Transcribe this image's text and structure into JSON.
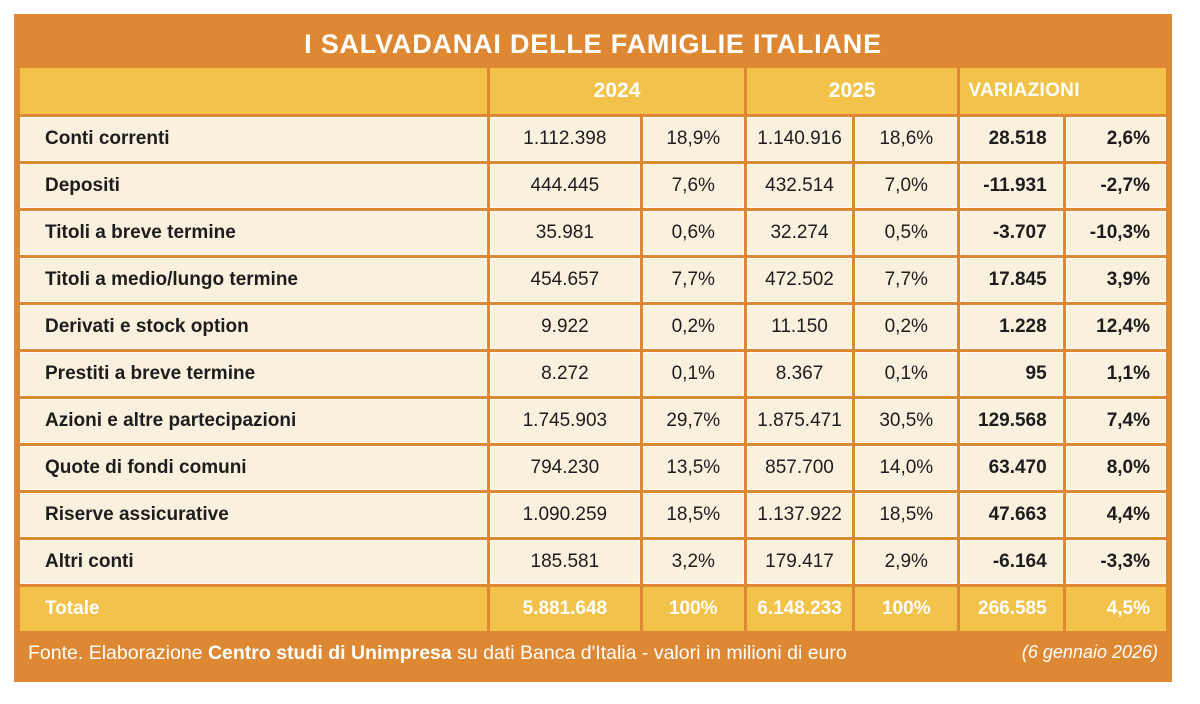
{
  "colors": {
    "frame_orange": "#DE8833",
    "header_gold": "#F3C24A",
    "cell_cream": "#FAF0DE",
    "text_dark": "#1D1D1D",
    "text_white": "#FFFFFF"
  },
  "chart_data": {
    "type": "table",
    "title": "I SALVADANAI DELLE FAMIGLIE ITALIANE",
    "headers": {
      "y2024": "2024",
      "y2025": "2025",
      "variazioni": "VARIAZIONI"
    },
    "rows": [
      {
        "label": "Conti correnti",
        "v2024": "1.112.398",
        "p2024": "18,9%",
        "v2025": "1.140.916",
        "p2025": "18,6%",
        "var": "28.518",
        "varp": "2,6%"
      },
      {
        "label": "Depositi",
        "v2024": "444.445",
        "p2024": "7,6%",
        "v2025": "432.514",
        "p2025": "7,0%",
        "var": "-11.931",
        "varp": "-2,7%"
      },
      {
        "label": "Titoli a breve termine",
        "v2024": "35.981",
        "p2024": "0,6%",
        "v2025": "32.274",
        "p2025": "0,5%",
        "var": "-3.707",
        "varp": "-10,3%"
      },
      {
        "label": "Titoli a medio/lungo termine",
        "v2024": "454.657",
        "p2024": "7,7%",
        "v2025": "472.502",
        "p2025": "7,7%",
        "var": "17.845",
        "varp": "3,9%"
      },
      {
        "label": "Derivati e stock option",
        "v2024": "9.922",
        "p2024": "0,2%",
        "v2025": "11.150",
        "p2025": "0,2%",
        "var": "1.228",
        "varp": "12,4%"
      },
      {
        "label": "Prestiti a breve termine",
        "v2024": "8.272",
        "p2024": "0,1%",
        "v2025": "8.367",
        "p2025": "0,1%",
        "var": "95",
        "varp": "1,1%"
      },
      {
        "label": "Azioni e altre partecipazioni",
        "v2024": "1.745.903",
        "p2024": "29,7%",
        "v2025": "1.875.471",
        "p2025": "30,5%",
        "var": "129.568",
        "varp": "7,4%"
      },
      {
        "label": "Quote di fondi comuni",
        "v2024": "794.230",
        "p2024": "13,5%",
        "v2025": "857.700",
        "p2025": "14,0%",
        "var": "63.470",
        "varp": "8,0%"
      },
      {
        "label": "Riserve assicurative",
        "v2024": "1.090.259",
        "p2024": "18,5%",
        "v2025": "1.137.922",
        "p2025": "18,5%",
        "var": "47.663",
        "varp": "4,4%"
      },
      {
        "label": "Altri conti",
        "v2024": "185.581",
        "p2024": "3,2%",
        "v2025": "179.417",
        "p2025": "2,9%",
        "var": "-6.164",
        "varp": "-3,3%"
      }
    ],
    "total": {
      "label": "Totale",
      "v2024": "5.881.648",
      "p2024": "100%",
      "v2025": "6.148.233",
      "p2025": "100%",
      "var": "266.585",
      "varp": "4,5%"
    },
    "footer": {
      "source_prefix": "Fonte. Elaborazione ",
      "source_bold": "Centro studi di Unimpresa",
      "source_suffix": " su dati Banca d'Italia - valori in milioni di euro",
      "date": "(6 gennaio 2026)"
    }
  }
}
